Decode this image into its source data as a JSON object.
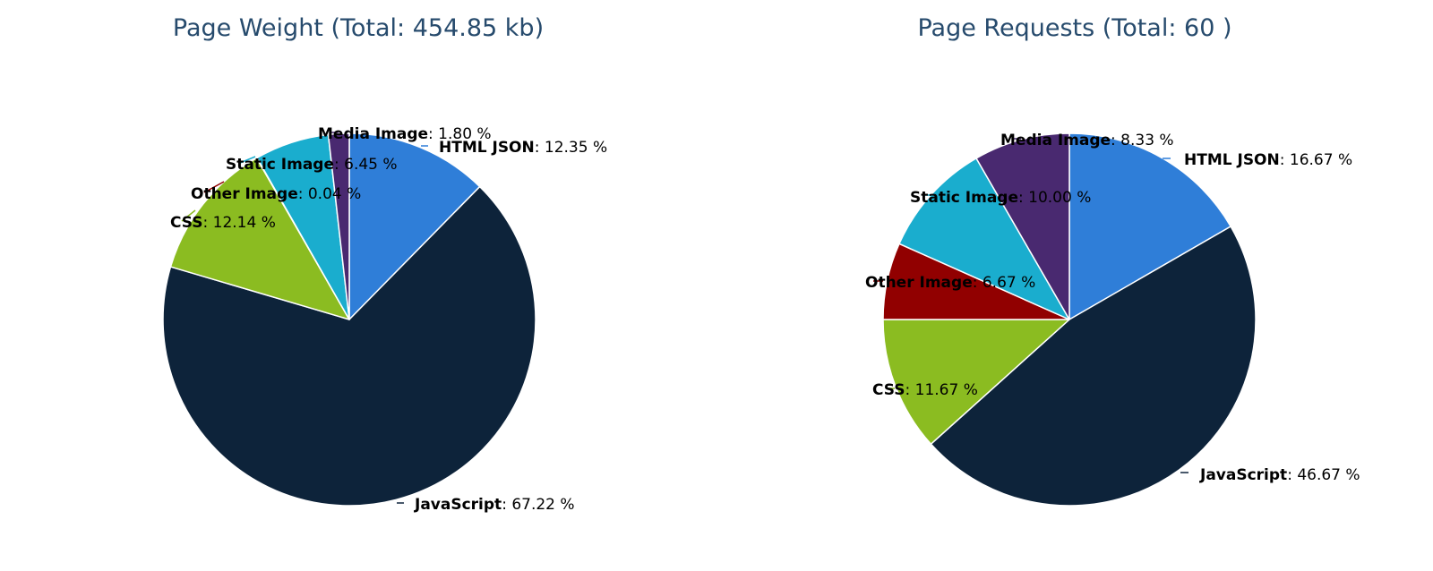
{
  "chart_data": [
    {
      "type": "pie",
      "title": "Page Weight (Total: 454.85 kb)",
      "slices": [
        {
          "name": "HTML JSON",
          "value": 12.35,
          "label": "12.35 %",
          "color": "#2f7ed8"
        },
        {
          "name": "JavaScript",
          "value": 67.22,
          "label": "67.22 %",
          "color": "#0d233a"
        },
        {
          "name": "CSS",
          "value": 12.14,
          "label": "12.14 %",
          "color": "#8bbc21"
        },
        {
          "name": "Other Image",
          "value": 0.04,
          "label": "0.04 %",
          "color": "#910000"
        },
        {
          "name": "Static Image",
          "value": 6.45,
          "label": "6.45 %",
          "color": "#1aadce"
        },
        {
          "name": "Media Image",
          "value": 1.8,
          "label": "1.80 %",
          "color": "#492970"
        }
      ]
    },
    {
      "type": "pie",
      "title": "Page Requests (Total: 60 )",
      "slices": [
        {
          "name": "HTML JSON",
          "value": 16.67,
          "label": "16.67 %",
          "color": "#2f7ed8"
        },
        {
          "name": "JavaScript",
          "value": 46.67,
          "label": "46.67 %",
          "color": "#0d233a"
        },
        {
          "name": "CSS",
          "value": 11.67,
          "label": "11.67 %",
          "color": "#8bbc21"
        },
        {
          "name": "Other Image",
          "value": 6.67,
          "label": "6.67 %",
          "color": "#910000"
        },
        {
          "name": "Static Image",
          "value": 10.0,
          "label": "10.00 %",
          "color": "#1aadce"
        },
        {
          "name": "Media Image",
          "value": 8.33,
          "label": "8.33 %",
          "color": "#492970"
        }
      ]
    }
  ]
}
